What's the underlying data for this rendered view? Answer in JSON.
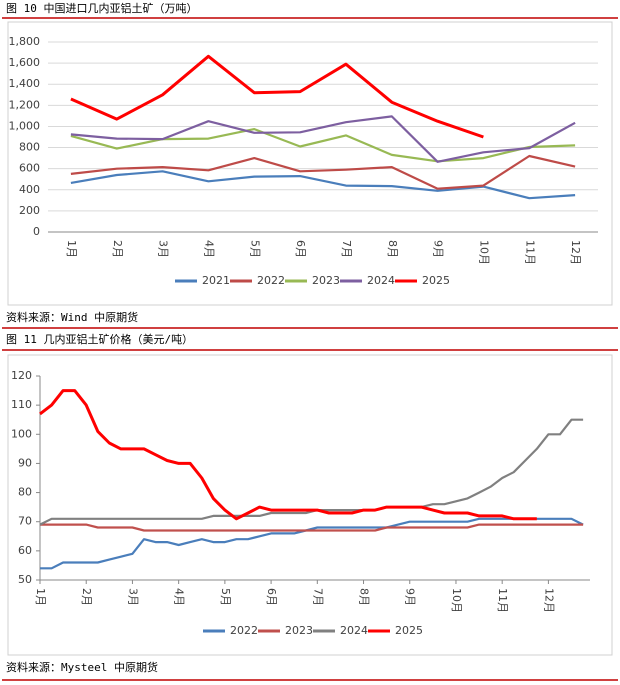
{
  "chart_data": [
    {
      "type": "line",
      "title": "图 10 中国进口几内亚铝土矿（万吨）",
      "source": "资料来源：Wind 中原期货",
      "categories": [
        "1月",
        "2月",
        "3月",
        "4月",
        "5月",
        "6月",
        "7月",
        "8月",
        "9月",
        "10月",
        "11月",
        "12月"
      ],
      "ylim": [
        0,
        1800
      ],
      "yticks": [
        0,
        200,
        400,
        600,
        800,
        {
          "value": 1000,
          "label": "1,000"
        },
        {
          "value": 1200,
          "label": "1,200"
        },
        {
          "value": 1400,
          "label": "1,400"
        },
        {
          "value": 1600,
          "label": "1,600"
        },
        {
          "value": 1800,
          "label": "1,800"
        }
      ],
      "grid": true,
      "series": [
        {
          "name": "2021",
          "color": "#4a7ebb",
          "values": [
            465,
            540,
            575,
            480,
            525,
            530,
            440,
            435,
            390,
            430,
            320,
            350
          ]
        },
        {
          "name": "2022",
          "color": "#be4b48",
          "values": [
            550,
            600,
            615,
            585,
            700,
            575,
            590,
            615,
            410,
            440,
            720,
            620
          ]
        },
        {
          "name": "2023",
          "color": "#98b954",
          "values": [
            910,
            790,
            880,
            885,
            975,
            810,
            915,
            730,
            670,
            700,
            805,
            820
          ]
        },
        {
          "name": "2024",
          "color": "#7d5fa0",
          "values": [
            925,
            885,
            880,
            1050,
            940,
            945,
            1040,
            1095,
            665,
            755,
            795,
            1035
          ]
        },
        {
          "name": "2025",
          "color": "#ff0000",
          "values": [
            1260,
            1070,
            1300,
            1665,
            1320,
            1330,
            1590,
            1230,
            1050,
            900,
            null,
            null
          ]
        }
      ]
    },
    {
      "type": "line",
      "title": "图 11 几内亚铝土矿价格（美元/吨）",
      "source": "资料来源：Mysteel 中原期货",
      "x": [
        1,
        1.25,
        1.5,
        1.75,
        2,
        2.25,
        2.5,
        2.75,
        3,
        3.25,
        3.5,
        3.75,
        4,
        4.25,
        4.5,
        4.75,
        5,
        5.25,
        5.5,
        5.75,
        6,
        6.25,
        6.5,
        6.75,
        7,
        7.25,
        7.5,
        7.75,
        8,
        8.25,
        8.5,
        8.75,
        9,
        9.25,
        9.5,
        9.75,
        10,
        10.25,
        10.5,
        10.75,
        11,
        11.25,
        11.5,
        11.75,
        12,
        12.25,
        12.5,
        12.75
      ],
      "xlim": [
        1,
        12.9
      ],
      "xticks": [
        {
          "value": 1,
          "label": "1月"
        },
        {
          "value": 2,
          "label": "2月"
        },
        {
          "value": 3,
          "label": "3月"
        },
        {
          "value": 4,
          "label": "4月"
        },
        {
          "value": 5,
          "label": "5月"
        },
        {
          "value": 6,
          "label": "6月"
        },
        {
          "value": 7,
          "label": "7月"
        },
        {
          "value": 8,
          "label": "8月"
        },
        {
          "value": 9,
          "label": "9月"
        },
        {
          "value": 10,
          "label": "10月"
        },
        {
          "value": 11,
          "label": "11月"
        },
        {
          "value": 12,
          "label": "12月"
        }
      ],
      "ylim": [
        50,
        120
      ],
      "yticks": [
        50,
        60,
        70,
        80,
        90,
        100,
        110,
        120
      ],
      "grid": false,
      "series": [
        {
          "name": "2022",
          "color": "#4a7ebb",
          "values": [
            54,
            54,
            56,
            56,
            56,
            56,
            57,
            58,
            59,
            64,
            63,
            63,
            62,
            63,
            64,
            63,
            63,
            64,
            64,
            65,
            66,
            66,
            66,
            67,
            68,
            68,
            68,
            68,
            68,
            68,
            68,
            69,
            70,
            70,
            70,
            70,
            70,
            70,
            71,
            71,
            71,
            71,
            71,
            71,
            71,
            71,
            71,
            69
          ]
        },
        {
          "name": "2023",
          "color": "#c0504d",
          "values": [
            69,
            69,
            69,
            69,
            69,
            68,
            68,
            68,
            68,
            67,
            67,
            67,
            67,
            67,
            67,
            67,
            67,
            67,
            67,
            67,
            67,
            67,
            67,
            67,
            67,
            67,
            67,
            67,
            67,
            67,
            68,
            68,
            68,
            68,
            68,
            68,
            68,
            68,
            69,
            69,
            69,
            69,
            69,
            69,
            69,
            69,
            69,
            69
          ]
        },
        {
          "name": "2024",
          "color": "#808080",
          "values": [
            69,
            71,
            71,
            71,
            71,
            71,
            71,
            71,
            71,
            71,
            71,
            71,
            71,
            71,
            71,
            72,
            72,
            72,
            72,
            72,
            73,
            73,
            73,
            73,
            74,
            74,
            74,
            74,
            74,
            74,
            75,
            75,
            75,
            75,
            76,
            76,
            77,
            78,
            80,
            82,
            85,
            87,
            91,
            95,
            100,
            100,
            105,
            105
          ]
        },
        {
          "name": "2025",
          "color": "#ff0000",
          "values": [
            107,
            110,
            115,
            115,
            110,
            101,
            97,
            95,
            95,
            95,
            93,
            91,
            90,
            90,
            85,
            78,
            74,
            71,
            73,
            75,
            74,
            74,
            74,
            74,
            74,
            73,
            73,
            73,
            74,
            74,
            75,
            75,
            75,
            75,
            74,
            73,
            73,
            73,
            72,
            72,
            72,
            71,
            71,
            71,
            null,
            null,
            null,
            null
          ]
        }
      ]
    }
  ]
}
